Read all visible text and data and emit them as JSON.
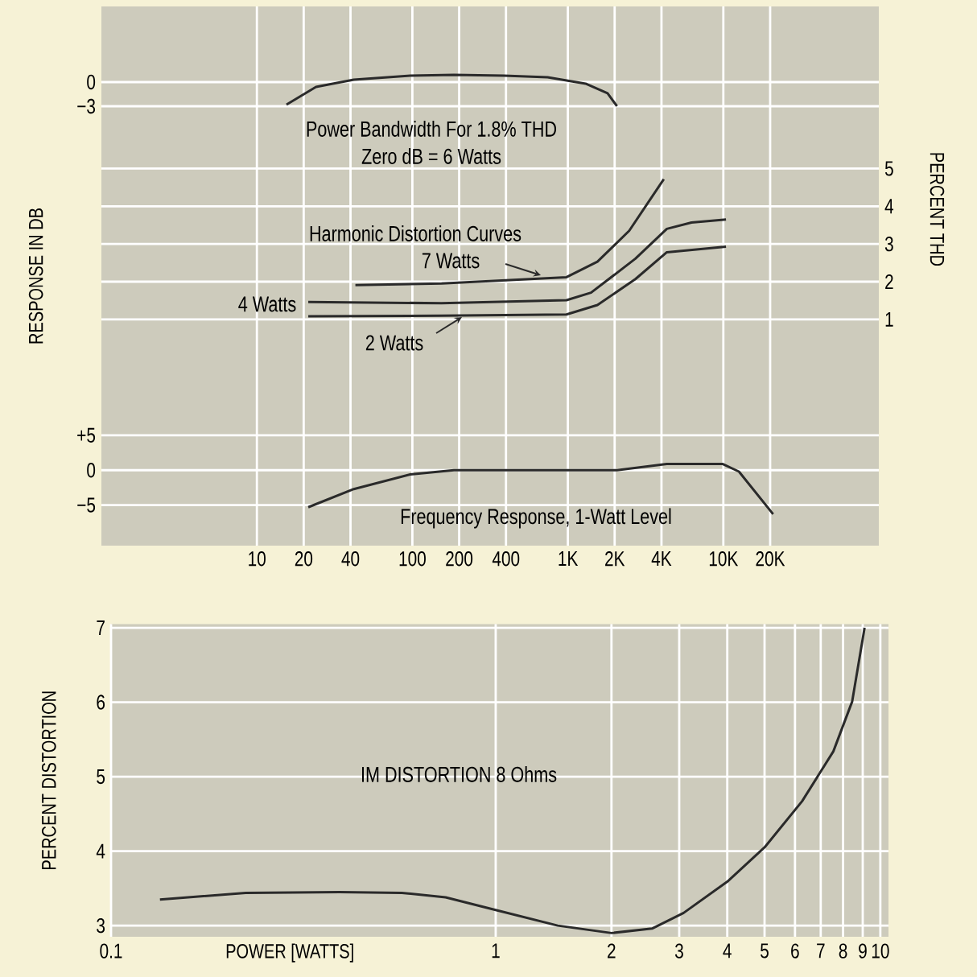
{
  "chart_data": [
    {
      "type": "line",
      "title": "Power Bandwidth For 1.8% THD",
      "subtitle": "Zero dB = 6 Watts",
      "ylabel": "RESPONSE IN DB",
      "log": "x",
      "xlim": [
        1,
        100000
      ],
      "ylim": [
        -57.6,
        9.4
      ],
      "yticks": [
        0,
        {
          "value": -3,
          "label": "−3"
        }
      ],
      "grid": "y",
      "tick_labels": "y",
      "x": [
        15.5,
        24,
        42,
        97,
        185,
        388,
        741,
        1300,
        1800,
        2070
      ],
      "series": [
        {
          "color": "#2a2a2a",
          "values": [
            -2.8,
            -0.6,
            0.3,
            0.8,
            0.9,
            0.8,
            0.6,
            -0.2,
            -1.4,
            -3.0
          ]
        }
      ]
    },
    {
      "type": "line",
      "annotations": [
        "Harmonic Distortion Curves"
      ],
      "y2label": "PERCENT THD",
      "log": "x",
      "xlim": [
        1,
        100000
      ],
      "y2lim": [
        -5.0,
        9.3
      ],
      "y2ticks": [
        1,
        2,
        3,
        4,
        5
      ],
      "grid": "y",
      "tick_labels": "y",
      "series": [
        {
          "name": "7 Watts",
          "color": "#2a2a2a",
          "axis": "y2",
          "x": [
            43,
            154,
            980,
            1550,
            2480,
            4140
          ],
          "values": [
            1.91,
            1.95,
            2.12,
            2.53,
            3.35,
            4.72
          ]
        },
        {
          "name": "4 Watts",
          "color": "#2a2a2a",
          "axis": "y2",
          "x": [
            21.4,
            154,
            980,
            1410,
            2720,
            4330,
            6240,
            10400
          ],
          "values": [
            1.46,
            1.43,
            1.51,
            1.71,
            2.61,
            3.4,
            3.57,
            3.65
          ]
        },
        {
          "name": "2 Watts",
          "color": "#2a2a2a",
          "axis": "y2",
          "x": [
            21.4,
            154,
            980,
            1550,
            2720,
            4330,
            10400
          ],
          "values": [
            1.08,
            1.1,
            1.13,
            1.38,
            2.07,
            2.78,
            2.93
          ]
        }
      ]
    },
    {
      "type": "line",
      "annotations": [
        "Frequency Response, 1-Watt Level"
      ],
      "log": "x",
      "xlim": [
        1,
        100000
      ],
      "ylim": [
        -10.8,
        66.4
      ],
      "xticks": [
        10,
        20,
        40,
        100,
        200,
        400,
        {
          "value": 1000,
          "label": "1K"
        },
        {
          "value": 2000,
          "label": "2K"
        },
        {
          "value": 4000,
          "label": "4K"
        },
        {
          "value": 10000,
          "label": "10K"
        },
        {
          "value": 20000,
          "label": "20K"
        }
      ],
      "yticks": [
        {
          "value": 5,
          "label": "+5"
        },
        0,
        {
          "value": -5,
          "label": "−5"
        }
      ],
      "grid": true,
      "x": [
        21.4,
        42,
        97,
        185,
        388,
        2070,
        4330,
        9860,
        12600,
        20900
      ],
      "series": [
        {
          "color": "#2a2a2a",
          "values": [
            -5.3,
            -2.7,
            -0.6,
            0,
            0,
            0,
            0.9,
            0.9,
            -0.2,
            -6.3
          ]
        }
      ]
    },
    {
      "type": "line",
      "annotations": [
        "IM DISTORTION 8 Ohms"
      ],
      "xlabel": "POWER [WATTS]",
      "ylabel": "PERCENT DISTORTION",
      "log": "x",
      "xlim": [
        0.1,
        10.5
      ],
      "ylim": [
        2.85,
        7.05
      ],
      "xticks": [
        0.1,
        1,
        2,
        3,
        4,
        5,
        6,
        7,
        8,
        9,
        10
      ],
      "yticks": [
        3,
        4,
        5,
        6,
        7
      ],
      "grid": true,
      "x": [
        0.134,
        0.224,
        0.393,
        0.57,
        0.741,
        1.0,
        1.45,
        2.0,
        2.55,
        3.08,
        4.0,
        5.0,
        6.26,
        7.55,
        8.45,
        9.1
      ],
      "series": [
        {
          "color": "#2a2a2a",
          "values": [
            3.35,
            3.44,
            3.45,
            3.44,
            3.38,
            3.21,
            3.0,
            2.9,
            2.96,
            3.17,
            3.59,
            4.05,
            4.67,
            5.34,
            6.01,
            7.0
          ]
        }
      ]
    }
  ]
}
